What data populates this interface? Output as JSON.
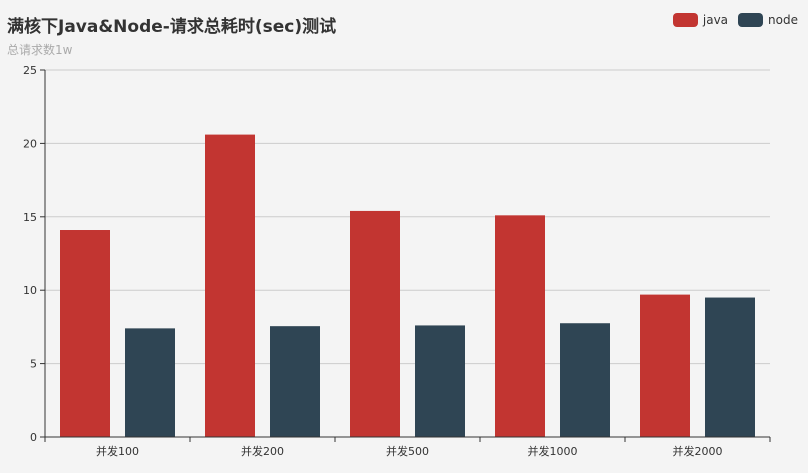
{
  "chart_data": {
    "type": "bar",
    "title": "满核下Java&Node-请求总耗时(sec)测试",
    "subtitle": "总请求数1w",
    "xlabel": "",
    "ylabel": "",
    "categories": [
      "并发100",
      "并发200",
      "并发500",
      "并发1000",
      "并发2000"
    ],
    "series": [
      {
        "name": "java",
        "color": "#c23531",
        "values": [
          14.1,
          20.6,
          15.4,
          15.1,
          9.7
        ]
      },
      {
        "name": "node",
        "color": "#2f4554",
        "values": [
          7.4,
          7.55,
          7.6,
          7.75,
          9.5
        ]
      }
    ],
    "ylim": [
      0,
      25
    ],
    "yticks": [
      "0",
      "5",
      "10",
      "15",
      "20",
      "25"
    ],
    "grid": true,
    "legend_position": "top-right"
  }
}
